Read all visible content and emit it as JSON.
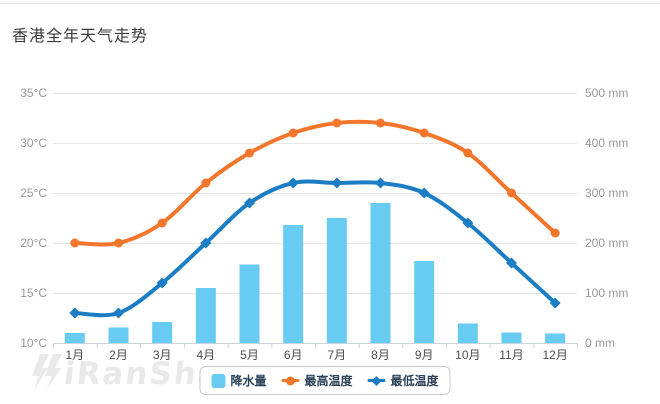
{
  "title": "香港全年天气走势",
  "watermark": {
    "text": "iRanShao"
  },
  "chart_data": {
    "type": "bar",
    "subtype": "column + line combo, dual y-axis",
    "categories": [
      "1月",
      "2月",
      "3月",
      "4月",
      "5月",
      "6月",
      "7月",
      "8月",
      "9月",
      "10月",
      "11月",
      "12月"
    ],
    "series": [
      {
        "name": "降水量",
        "type": "bar",
        "axis": "right",
        "marker": "square",
        "color": "#68CBF2",
        "values": [
          20,
          31,
          42,
          110,
          157,
          236,
          250,
          280,
          164,
          39,
          21,
          19
        ]
      },
      {
        "name": "最高温度",
        "type": "line",
        "axis": "left",
        "marker": "circle",
        "color": "#F2762B",
        "values": [
          20,
          20,
          22,
          26,
          29,
          31,
          32,
          32,
          31,
          29,
          25,
          21
        ]
      },
      {
        "name": "最低温度",
        "type": "line",
        "axis": "left",
        "marker": "diamond",
        "color": "#1B7DC4",
        "values": [
          13,
          13,
          16,
          20,
          24,
          26,
          26,
          26,
          25,
          22,
          18,
          14
        ]
      }
    ],
    "left_axis": {
      "unit": "°C",
      "min": 10,
      "max": 35,
      "step": 5,
      "label_format": "{v}°C"
    },
    "right_axis": {
      "unit": "mm",
      "min": 0,
      "max": 500,
      "step": 100,
      "label_format": "{v} mm"
    },
    "grid": true,
    "legend_position": "bottom-center"
  },
  "colors": {
    "bar": "#68CBF2",
    "max_temp_line": "#F2762B",
    "min_temp_line": "#1B7DC4",
    "gridline": "#e6e6e6",
    "axis_line": "#c8d4de",
    "y_tick_label": "#999999",
    "x_tick_label": "#4d4d4d",
    "title": "#3b3b3b",
    "legend_text": "#2b4257",
    "legend_border": "#c9c9c9",
    "watermark": "#e9e9e9"
  }
}
